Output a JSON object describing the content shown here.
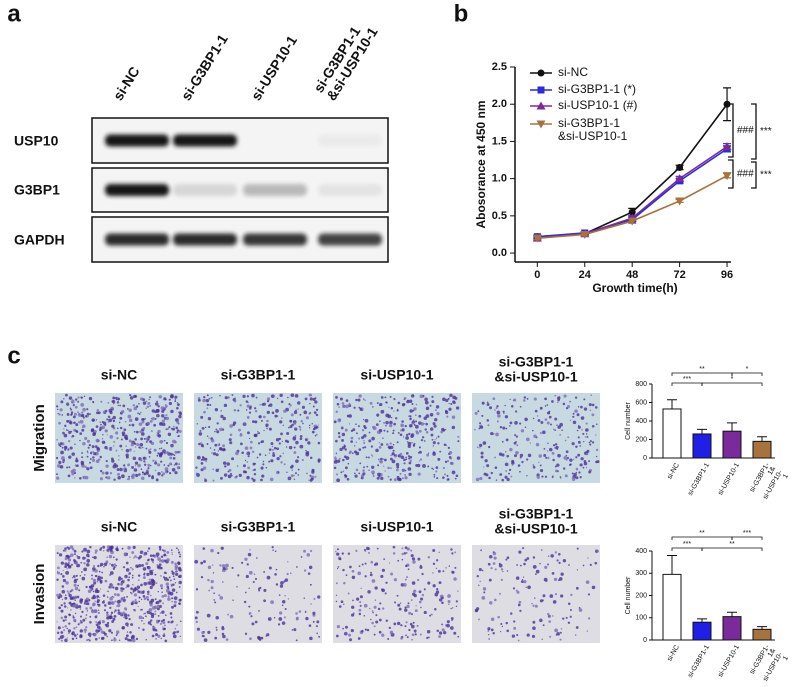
{
  "panel_labels": [
    "a",
    "b",
    "c"
  ],
  "blot": {
    "lanes": [
      "si-NC",
      "si-G3BP1-1",
      "si-USP10-1",
      "si-G3BP1-1\n&si-USP10-1"
    ],
    "rows": [
      "USP10",
      "G3BP1",
      "GAPDH"
    ]
  },
  "images": {
    "rows": [
      "Migration",
      "Invasion"
    ],
    "migration_columns": [
      "si-NC",
      "si-G3BP1-1",
      "si-USP10-1",
      "si-G3BP1-1\n&si-USP10-1"
    ],
    "invasion_columns": [
      "si-NC",
      "si-G3BP1-1",
      "si-USP10-1",
      "si-G3BP1-1\n&si-USP10-1"
    ]
  },
  "chart_data": [
    {
      "type": "line",
      "x_label": "Growth time(h)",
      "y_label": "Abosorance at 450 nm",
      "x": [
        0,
        24,
        48,
        72,
        96
      ],
      "xlim": [
        -11.3,
        98
      ],
      "xticks": [
        0,
        24,
        48,
        72,
        96
      ],
      "ylim": [
        -0.12,
        2.5
      ],
      "yticks": [
        {
          "value": 0,
          "label": "0.0"
        },
        {
          "value": 0.5,
          "label": "0.5"
        },
        {
          "value": 1,
          "label": "1.0"
        },
        {
          "value": 1.5,
          "label": "1.5"
        },
        {
          "value": 2,
          "label": "2.0"
        },
        {
          "value": 2.5,
          "label": "2.5"
        }
      ],
      "legend": "top-left",
      "series": [
        {
          "name": "si-NC",
          "color": "#111111",
          "marker": "circle",
          "values": [
            0.22,
            0.26,
            0.55,
            1.15,
            2.0
          ],
          "errors": [
            0.02,
            0.02,
            0.05,
            0.03,
            0.22
          ]
        },
        {
          "name": "si-G3BP1-1 (*)",
          "color": "#2a2ae0",
          "marker": "square",
          "values": [
            0.22,
            0.27,
            0.45,
            0.97,
            1.4
          ],
          "errors": [
            0.02,
            0.02,
            0.03,
            0.03,
            0.04
          ]
        },
        {
          "name": "si-USP10-1 (#)",
          "color": "#7a2a9a",
          "marker": "triangle",
          "values": [
            0.2,
            0.26,
            0.47,
            1.0,
            1.43
          ],
          "errors": [
            0.02,
            0.02,
            0.03,
            0.03,
            0.04
          ]
        },
        {
          "name": " si-G3BP1-1\n&si-USP10-1",
          "color": "#a6733e",
          "marker": "triangle-down",
          "values": [
            0.2,
            0.25,
            0.43,
            0.7,
            1.04
          ],
          "errors": [
            0.02,
            0.02,
            0.03,
            0.02,
            0.03
          ]
        }
      ],
      "annotations": [
        "###",
        "###",
        "***",
        "***"
      ]
    },
    {
      "type": "bar",
      "y_label": "Cell number",
      "categories": [
        "si-NC",
        "si-G3BP1-1",
        "si-USP10-1",
        "si-G3BP1-1&\nsi-USP10-1"
      ],
      "values": [
        530,
        260,
        290,
        180
      ],
      "errors": [
        100,
        50,
        90,
        50
      ],
      "colors": [
        "#ffffff",
        "#1f1fe6",
        "#7a2a9a",
        "#a6733e"
      ],
      "ylim": [
        0,
        800
      ],
      "yticks": [
        0,
        200,
        400,
        600,
        800
      ],
      "annotations": [
        "**",
        "*",
        "***",
        "*"
      ]
    },
    {
      "type": "bar",
      "y_label": "Cell number",
      "categories": [
        "si-NC",
        "si-G3BP1-1",
        "si-USP10-1",
        "si-G3BP1-1&\nsi-USP10-1"
      ],
      "values": [
        295,
        80,
        105,
        48
      ],
      "errors": [
        85,
        15,
        20,
        12
      ],
      "colors": [
        "#ffffff",
        "#1f1fe6",
        "#7a2a9a",
        "#a6733e"
      ],
      "ylim": [
        0,
        400
      ],
      "yticks": [
        0,
        100,
        200,
        300,
        400
      ],
      "annotations": [
        "**",
        "***",
        "***",
        "**"
      ]
    }
  ]
}
